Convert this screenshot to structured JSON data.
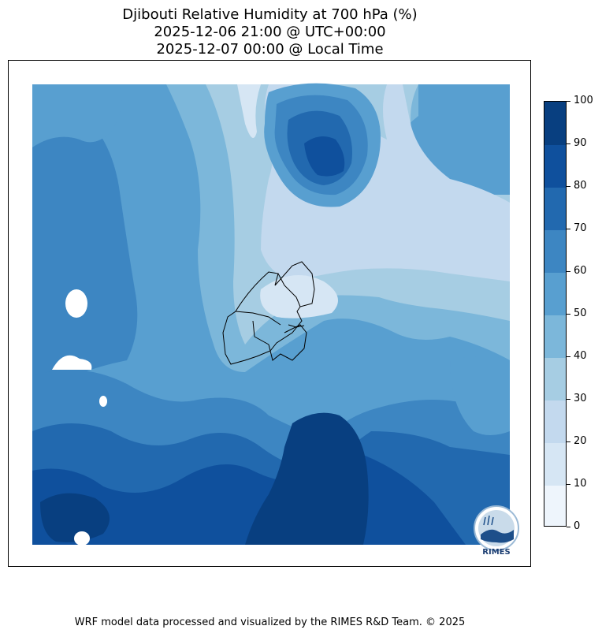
{
  "title": {
    "line1": "Djibouti Relative Humidity at 700 hPa (%)",
    "line2": "2025-12-06 21:00 @ UTC+00:00",
    "line3": "2025-12-07 00:00 @ Local Time"
  },
  "colorbar": {
    "min": 0,
    "max": 100,
    "ticks": [
      "0",
      "10",
      "20",
      "30",
      "40",
      "50",
      "60",
      "70",
      "80",
      "90",
      "100"
    ],
    "colors": [
      "#f7fbff",
      "#deebf7",
      "#c6dbef",
      "#9ecae1",
      "#6baed6",
      "#4292c6",
      "#2171b5",
      "#08519c",
      "#08306b",
      "#08306b"
    ],
    "band_colors": [
      "#eef5fc",
      "#d6e6f4",
      "#c3d9ee",
      "#a6cde3",
      "#7cb7da",
      "#589fd0",
      "#3d86c2",
      "#2269af",
      "#0f509d",
      "#083f80"
    ]
  },
  "logo": {
    "text": "RIMES",
    "name": "rimes-logo"
  },
  "footer": {
    "text": "WRF model data processed and visualized by the RIMES R&D Team. © 2025"
  }
}
